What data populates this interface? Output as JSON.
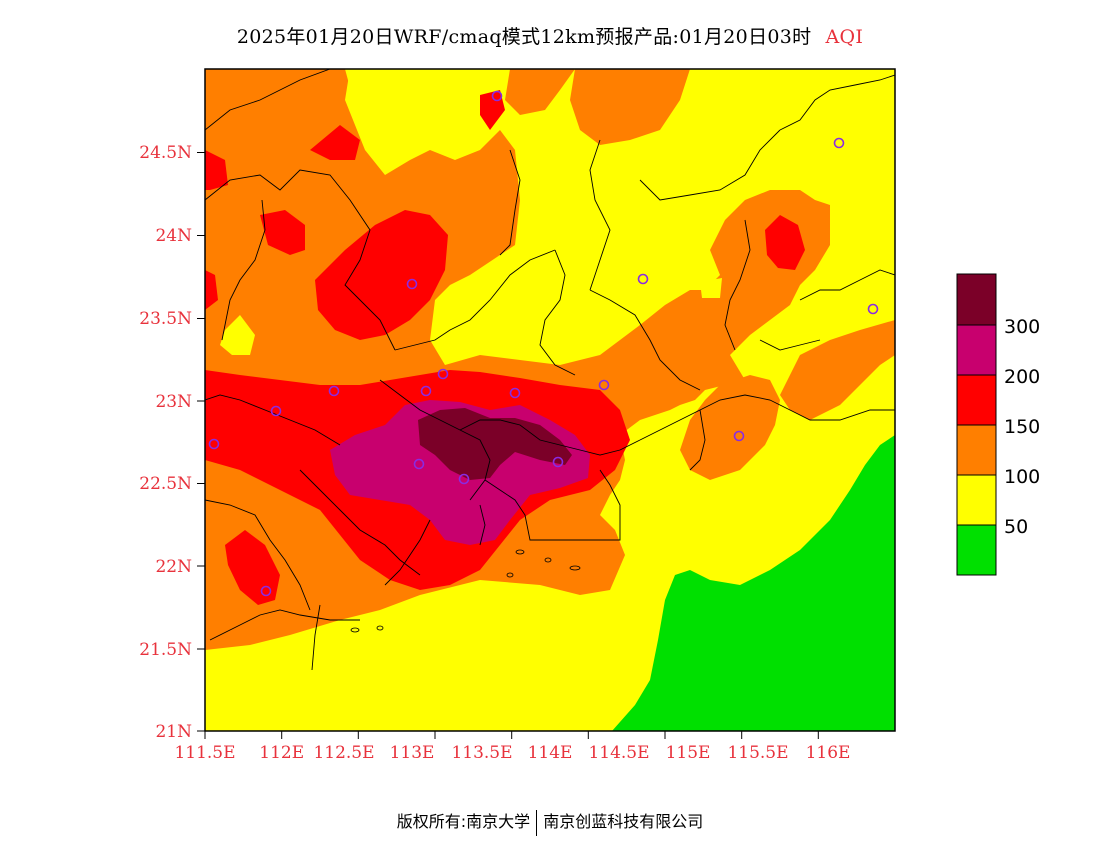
{
  "title": {
    "main": "2025年01月20日WRF/cmaq模式12km预报产品:01月20日03时",
    "variable": "AQI"
  },
  "axes": {
    "x_ticks": [
      "111.5E",
      "112E",
      "112.5E",
      "113E",
      "113.5E",
      "114E",
      "114.5E",
      "115E",
      "115.5E",
      "116E"
    ],
    "y_ticks": [
      "24.5N",
      "24N",
      "23.5N",
      "23N",
      "22.5N",
      "22N",
      "21.5N",
      "21N"
    ]
  },
  "legend": {
    "labels": [
      "300",
      "200",
      "150",
      "100",
      "50"
    ],
    "colors": [
      "#7b0028",
      "#c8006e",
      "#ff0000",
      "#ff7f00",
      "#ffff00",
      "#00e000"
    ]
  },
  "colors": {
    "good": "#00e000",
    "moderate": "#ffff00",
    "usg": "#ff7f00",
    "unhealthy": "#ff0000",
    "very_unhealthy": "#c8006e",
    "hazardous": "#7b0028",
    "station_marker": "#8a2be2",
    "tick_text": "#e8323c"
  },
  "footer": {
    "left": "版权所有:南京大学",
    "right": "南京创蓝科技有限公司"
  }
}
